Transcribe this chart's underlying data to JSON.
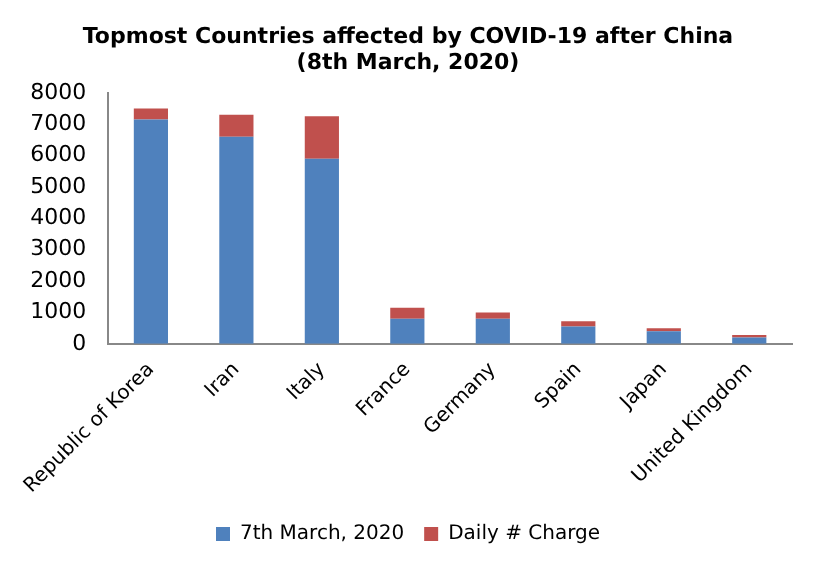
{
  "chart_data": {
    "type": "bar",
    "title": "Topmost Countries affected by COVID-19 after China (8th March, 2020)",
    "categories": [
      "Republic of Korea",
      "Iran",
      "Italy",
      "France",
      "Germany",
      "Spain",
      "Japan",
      "United Kingdom"
    ],
    "stacked": true,
    "series": [
      {
        "name": "7th March, 2020",
        "color": "#4f81bd",
        "values": [
          7150,
          6600,
          5900,
          800,
          800,
          550,
          400,
          200
        ]
      },
      {
        "name": "Daily # Charge",
        "color": "#c0504d",
        "values": [
          350,
          700,
          1350,
          350,
          200,
          170,
          100,
          80
        ]
      }
    ],
    "ylim": [
      0,
      8000
    ],
    "yticks": [
      0,
      1000,
      2000,
      3000,
      4000,
      5000,
      6000,
      7000,
      8000
    ],
    "grid": false,
    "legend": "bottom"
  }
}
